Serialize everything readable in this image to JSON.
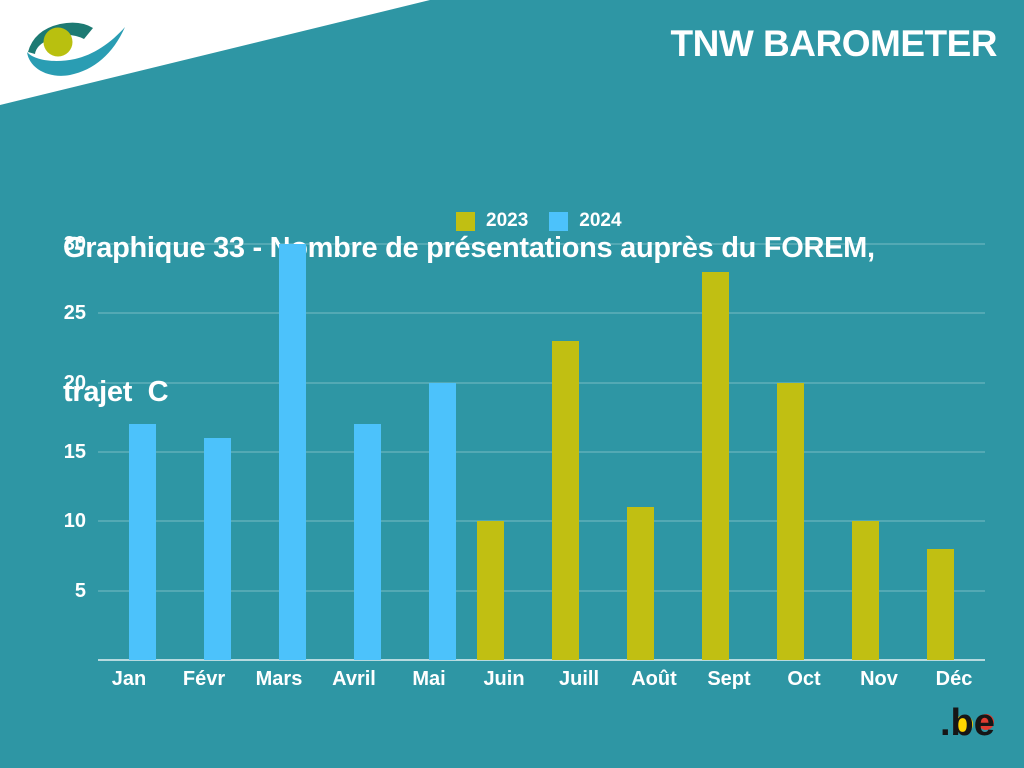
{
  "header": {
    "brand": "TNW BAROMETER"
  },
  "title": {
    "line1": "Graphique 33 - Nombre de présentations auprès du FOREM,",
    "line2": "trajet  C"
  },
  "legend": [
    {
      "label": "2023",
      "color": "#c1bf12"
    },
    {
      "label": "2024",
      "color": "#4cc2fb"
    }
  ],
  "footer": {
    "be_label": ".be"
  },
  "icons": {
    "org_logo": "eye-swoosh-logo",
    "be_logo": "belgium-dot-be-logo"
  },
  "colors": {
    "background": "#2e96a4",
    "bar_2023": "#c1bf12",
    "bar_2024": "#4cc2fb",
    "text": "#ffffff",
    "be_yellow": "#ffd500",
    "be_red": "#e03c31"
  },
  "chart_data": {
    "type": "bar",
    "title": "Graphique 33 - Nombre de présentations auprès du FOREM, trajet C",
    "categories": [
      "Jan",
      "Févr",
      "Mars",
      "Avril",
      "Mai",
      "Juin",
      "Juill",
      "Août",
      "Sept",
      "Oct",
      "Nov",
      "Déc"
    ],
    "series": [
      {
        "name": "2023",
        "color": "#c1bf12",
        "values": [
          null,
          null,
          null,
          null,
          null,
          10,
          23,
          11,
          28,
          20,
          10,
          8
        ]
      },
      {
        "name": "2024",
        "color": "#4cc2fb",
        "values": [
          17,
          16,
          30,
          17,
          20,
          null,
          null,
          null,
          null,
          null,
          null,
          null
        ]
      }
    ],
    "xlabel": "",
    "ylabel": "",
    "ylim": [
      0,
      30
    ],
    "yticks": [
      5,
      10,
      15,
      20,
      25,
      30
    ],
    "grid": true,
    "legend_position": "top-center"
  }
}
